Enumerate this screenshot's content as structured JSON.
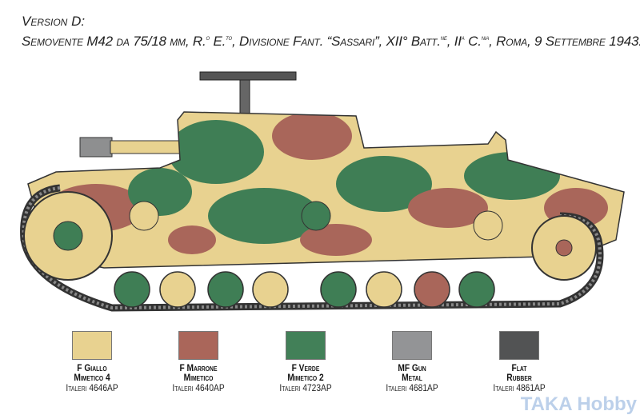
{
  "header": {
    "version": "Version D:",
    "desc_parts": [
      "Semovente M42 da 75/18 mm, R.",
      "o",
      " E.",
      "to",
      ", Divisione Fant. “Sassari”, XII° Batt.",
      "ne",
      ", II",
      "a",
      " C.",
      "nia",
      ", Roma,  9 Settembre 1943."
    ]
  },
  "illustration": {
    "subject": "Semovente M42 camouflage profile",
    "camo_colors": [
      "#e8d290",
      "#a9665a",
      "#3f7e55"
    ]
  },
  "paints": [
    {
      "name1": "F Giallo",
      "name2": "Mimetico 4",
      "code": "Italeri 4646AP",
      "color": "#e8d290"
    },
    {
      "name1": "F Marrone",
      "name2": "Mimetico",
      "code": "Italeri 4640AP",
      "color": "#aa665a"
    },
    {
      "name1": "F Verde",
      "name2": "Mimetico 2",
      "code": "Italeri 4723AP",
      "color": "#428058"
    },
    {
      "name1": "MF Gun",
      "name2": "Metal",
      "code": "Italeri 4681AP",
      "color": "#939496"
    },
    {
      "name1": "Flat",
      "name2": "Rubber",
      "code": "Italeri 4861AP",
      "color": "#525354"
    }
  ],
  "watermark": "TAKA Hobby"
}
